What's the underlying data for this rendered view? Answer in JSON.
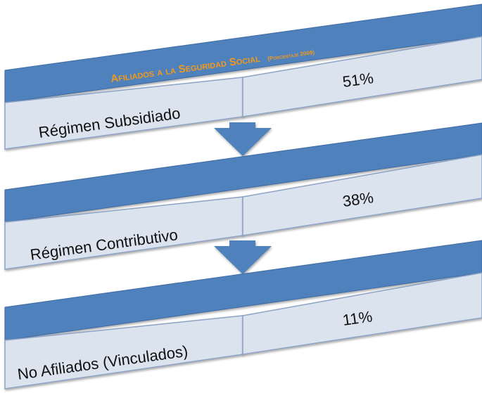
{
  "title": {
    "main": "Afiliados a la Seguridad Social",
    "sub": "(Porcentaje 2009)"
  },
  "rows": [
    {
      "label": "Régimen Subsidiado",
      "value": "51%"
    },
    {
      "label": "Régimen Contributivo",
      "value": "38%"
    },
    {
      "label": "No Afiliados (Vinculados)",
      "value": "11%"
    }
  ],
  "colors": {
    "band": "#4f81bd",
    "band_edge": "#3c6aa3",
    "cell": "#dbe3ef",
    "cell_border": "#8da3c4",
    "arrow": "#4f81bd",
    "title": "#f39a1b",
    "text": "#111111"
  },
  "icons": {
    "arrow": "down-arrow-icon"
  }
}
